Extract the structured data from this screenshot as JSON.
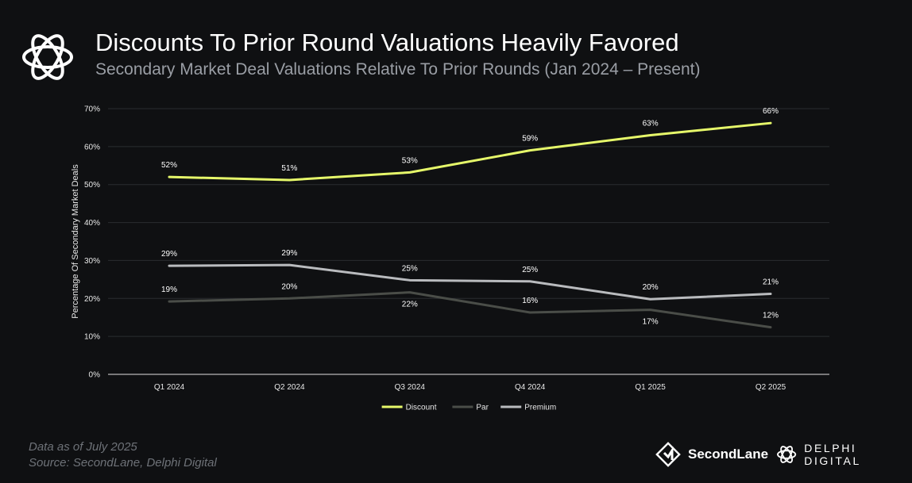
{
  "header": {
    "title": "Discounts To Prior Round Valuations Heavily Favored",
    "subtitle": "Secondary Market Deal Valuations Relative To Prior Rounds (Jan 2024 – Present)"
  },
  "chart_data": {
    "type": "line",
    "title": "Discounts To Prior Round Valuations Heavily Favored",
    "subtitle": "Secondary Market Deal Valuations Relative To Prior Rounds (Jan 2024 – Present)",
    "xlabel": "",
    "ylabel": "Percentage Of Secondary Market Deals",
    "ylim": [
      0,
      70
    ],
    "yticks": [
      0,
      10,
      20,
      30,
      40,
      50,
      60,
      70
    ],
    "ytick_labels": [
      "0%",
      "10%",
      "20%",
      "30%",
      "40%",
      "50%",
      "60%",
      "70%"
    ],
    "grid": true,
    "legend_position": "bottom-center",
    "categories": [
      "Q1 2024",
      "Q2 2024",
      "Q3 2024",
      "Q4 2024",
      "Q1 2025",
      "Q2 2025"
    ],
    "series": [
      {
        "name": "Discount",
        "color": "#e6f86a",
        "values": [
          52,
          51.2,
          53.2,
          59,
          63,
          66.2
        ],
        "labels": [
          "52%",
          "51%",
          "53%",
          "59%",
          "63%",
          "66%"
        ],
        "label_position": "above"
      },
      {
        "name": "Par",
        "color": "#4a4d48",
        "values": [
          19.2,
          20,
          21.6,
          16.3,
          17,
          12.4
        ],
        "labels": [
          "19%",
          "20%",
          "22%",
          "16%",
          "17%",
          "12%"
        ],
        "label_placement": [
          "above",
          "above",
          "below",
          "above",
          "below",
          "above"
        ]
      },
      {
        "name": "Premium",
        "color": "#b9bbbe",
        "values": [
          28.6,
          28.8,
          24.8,
          24.5,
          19.8,
          21.2
        ],
        "labels": [
          "29%",
          "29%",
          "25%",
          "25%",
          "20%",
          "21%"
        ],
        "label_position": "above"
      }
    ]
  },
  "footer": {
    "note": "Data as of July 2025",
    "source": "Source:  SecondLane,  Delphi  Digital",
    "brand_secondlane": "SecondLane",
    "brand_delphi": "DELPHI DIGITAL"
  },
  "icons": {
    "header_logo": "delphi-knot-logo-icon",
    "secondlane_logo": "secondlane-diamond-logo-icon",
    "delphi_logo": "delphi-knot-small-icon"
  }
}
